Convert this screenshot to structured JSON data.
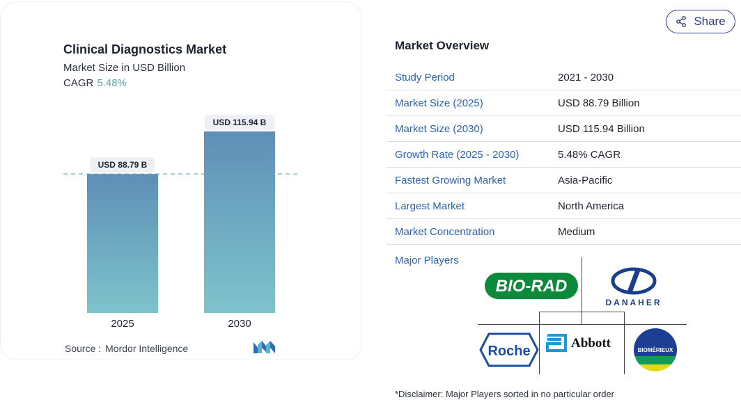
{
  "share": {
    "label": "Share",
    "icon": "share-icon"
  },
  "chart_data": {
    "type": "bar",
    "title": "Clinical Diagnostics Market",
    "subtitle": "Market Size in USD Billion",
    "cagr_label": "CAGR",
    "cagr_value": "5.48%",
    "categories": [
      "2025",
      "2030"
    ],
    "values": [
      88.79,
      115.94
    ],
    "data_labels": [
      "USD 88.79 B",
      "USD 115.94 B"
    ],
    "bar_colors_top": [
      "#5e8fb6",
      "#5e8fb6"
    ],
    "bar_colors_bottom": [
      "#7ec3cc",
      "#7ec3cc"
    ],
    "reference_line": 88.79,
    "ylim": [
      0,
      115.94
    ],
    "xlabel": "",
    "ylabel": "",
    "grid": false
  },
  "source": {
    "label": "Source :",
    "value": "Mordor Intelligence"
  },
  "overview": {
    "title": "Market Overview",
    "rows": [
      {
        "key": "Study Period",
        "value": "2021 - 2030"
      },
      {
        "key": "Market Size (2025)",
        "value": "USD 88.79 Billion"
      },
      {
        "key": "Market Size (2030)",
        "value": "USD 115.94 Billion"
      },
      {
        "key": "Growth Rate (2025 - 2030)",
        "value": "5.48% CAGR"
      },
      {
        "key": "Fastest Growing Market",
        "value": "Asia-Pacific"
      },
      {
        "key": "Largest Market",
        "value": "North America"
      },
      {
        "key": "Market Concentration",
        "value": "Medium"
      }
    ]
  },
  "players": {
    "label": "Major Players",
    "logos": [
      "BIO-RAD",
      "DANAHER",
      "Roche",
      "Abbott",
      "BIOMÉRIEUX"
    ]
  },
  "disclaimer": "*Disclaimer: Major Players sorted in no particular order",
  "colors": {
    "link": "#2a63b7",
    "accent": "#5aa6b8",
    "share": "#2d3a8c"
  }
}
